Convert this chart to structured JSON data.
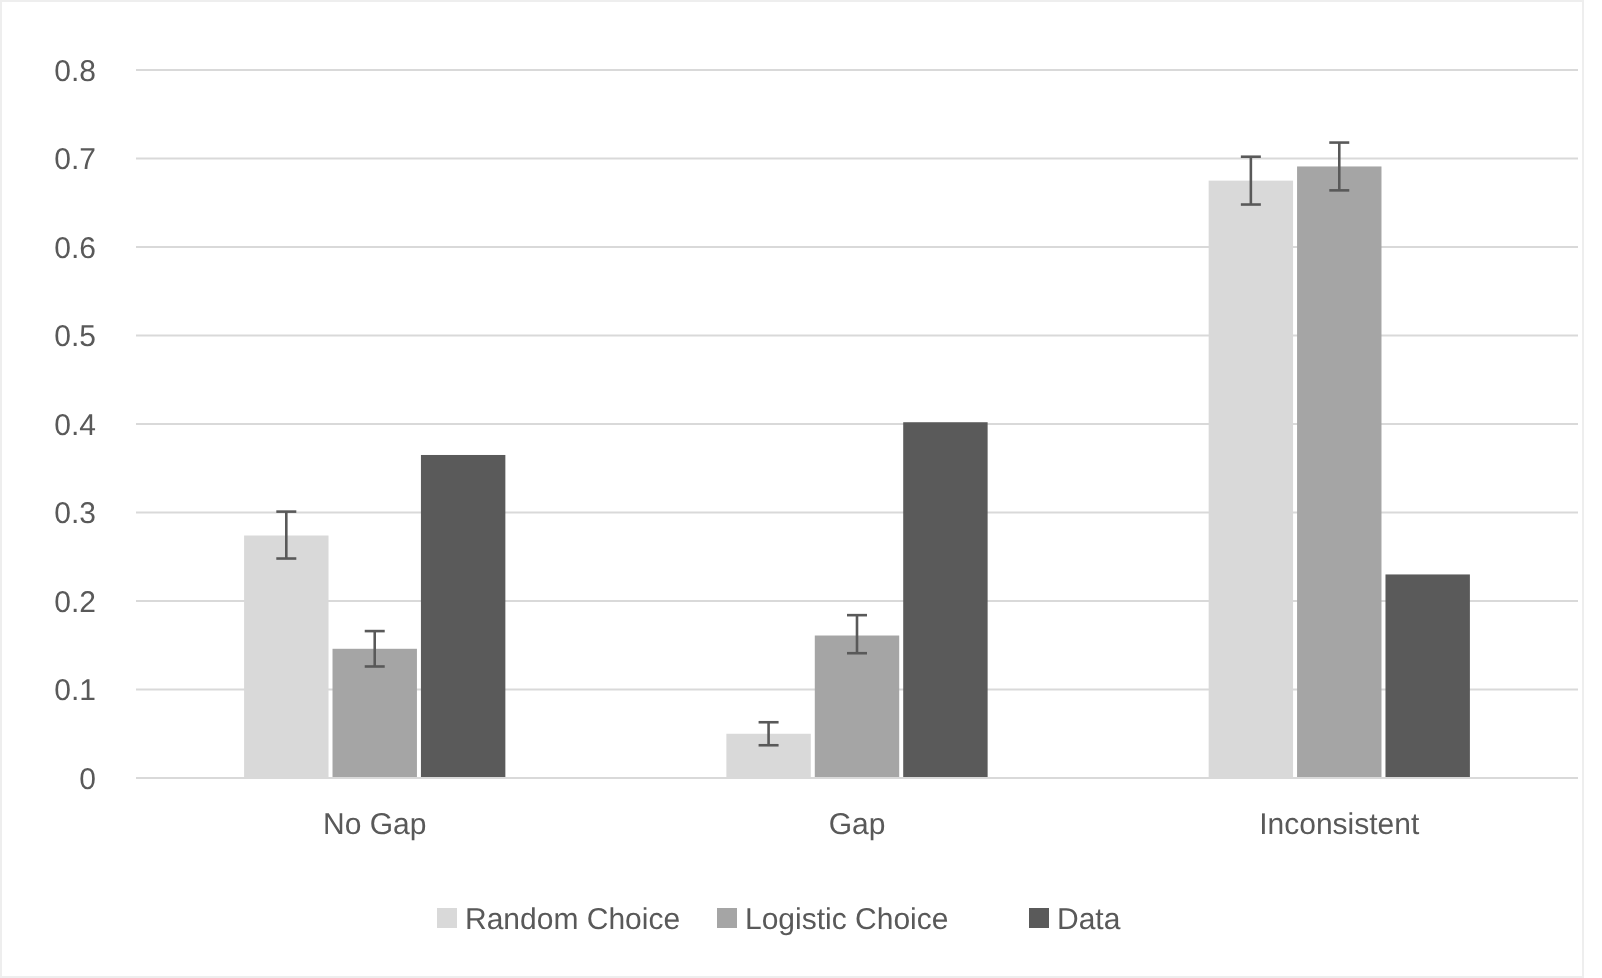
{
  "chart_data": {
    "type": "bar",
    "categories": [
      "No Gap",
      "Gap",
      "Inconsistent"
    ],
    "series": [
      {
        "name": "Random Choice",
        "color": "#d9d9d9",
        "values": [
          0.274,
          0.05,
          0.675
        ],
        "errors": [
          [
            0.248,
            0.301
          ],
          [
            0.037,
            0.063
          ],
          [
            0.648,
            0.702
          ]
        ]
      },
      {
        "name": "Logistic Choice",
        "color": "#a5a5a5",
        "values": [
          0.146,
          0.161,
          0.691
        ],
        "errors": [
          [
            0.126,
            0.166
          ],
          [
            0.141,
            0.184
          ],
          [
            0.664,
            0.718
          ]
        ]
      },
      {
        "name": "Data",
        "color": "#5a5a5a",
        "values": [
          0.365,
          0.402,
          0.23
        ]
      }
    ],
    "ylim": [
      0,
      0.8
    ],
    "yticks": [
      0,
      0.1,
      0.2,
      0.3,
      0.4,
      0.5,
      0.6,
      0.7,
      0.8
    ],
    "grid": "y",
    "legend": "bottom"
  }
}
